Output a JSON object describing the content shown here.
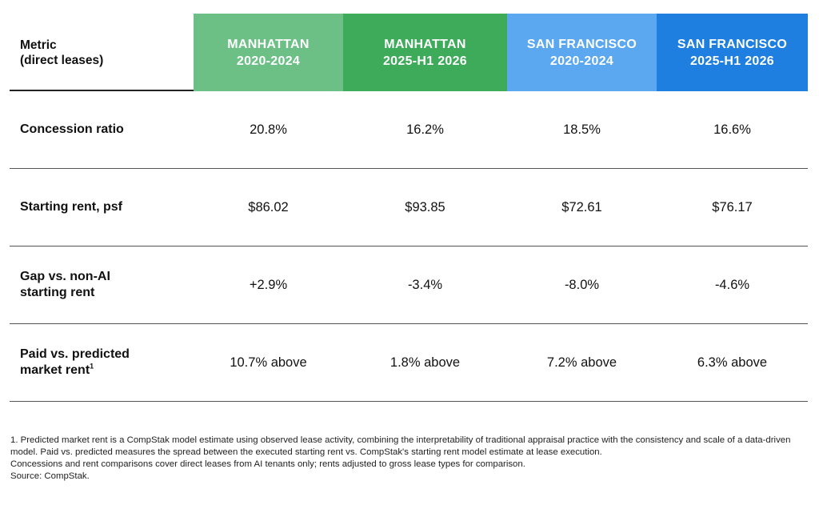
{
  "table": {
    "metric_header_line1": "Metric",
    "metric_header_line2": "(direct leases)",
    "columns": [
      {
        "line1": "MANHATTAN",
        "line2": "2020-2024",
        "color": "#6cc086"
      },
      {
        "line1": "MANHATTAN",
        "line2": "2025-H1 2026",
        "color": "#3dab5a"
      },
      {
        "line1": "SAN FRANCISCO",
        "line2": "2020-2024",
        "color": "#5ba8f0"
      },
      {
        "line1": "SAN FRANCISCO",
        "line2": "2025-H1 2026",
        "color": "#1e7fe0"
      }
    ],
    "rows": [
      {
        "label_line1": "Concession ratio",
        "label_line2": "",
        "values": [
          "20.8%",
          "16.2%",
          "18.5%",
          "16.6%"
        ]
      },
      {
        "label_line1": "Starting rent, psf",
        "label_line2": "",
        "values": [
          "$86.02",
          "$93.85",
          "$72.61",
          "$76.17"
        ]
      },
      {
        "label_line1": "Gap vs. non-AI",
        "label_line2": "starting rent",
        "values": [
          "+2.9%",
          "-3.4%",
          "-8.0%",
          "-4.6%"
        ]
      },
      {
        "label_line1": "Paid vs. predicted",
        "label_line2": "market rent",
        "label_sup": "1",
        "values": [
          "10.7% above",
          "1.8% above",
          "7.2% above",
          "6.3% above"
        ]
      }
    ]
  },
  "footnotes": {
    "note1": "1. Predicted market rent is a CompStak model estimate using observed lease activity, combining the interpretability of traditional appraisal practice with the consistency and scale of a data-driven model. Paid vs. predicted measures the spread between the executed starting rent vs. CompStak's starting rent model estimate at lease execution.",
    "note2": "Concessions and rent comparisons cover direct leases from AI tenants only; rents adjusted to gross lease types for comparison.",
    "source": "Source: CompStak."
  }
}
